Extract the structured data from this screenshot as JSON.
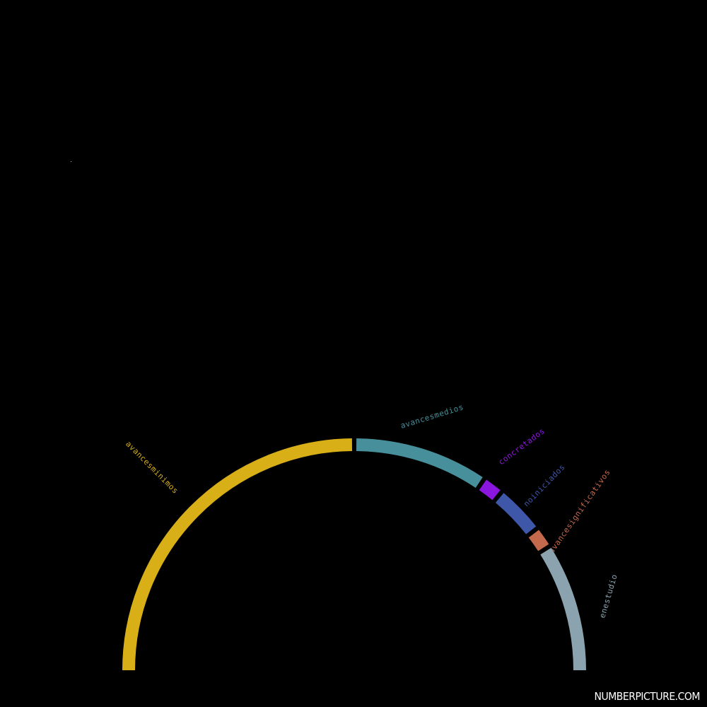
{
  "chart_data": {
    "type": "pie",
    "variant": "semicircle-arc",
    "title": "",
    "categories": [
      "avancesminimos",
      "avancesmedios",
      "concretados",
      "noiniciados",
      "avancesignificativos",
      "enestudio"
    ],
    "values": [
      50,
      19,
      3,
      7,
      3,
      18
    ],
    "colors": [
      "#d8af17",
      "#478f9a",
      "#8b16de",
      "#3f57a8",
      "#c4694b",
      "#8aa3af"
    ],
    "legend": "none",
    "grid": false
  },
  "watermark": {
    "text": "NUMBERPICTURE.COM"
  }
}
